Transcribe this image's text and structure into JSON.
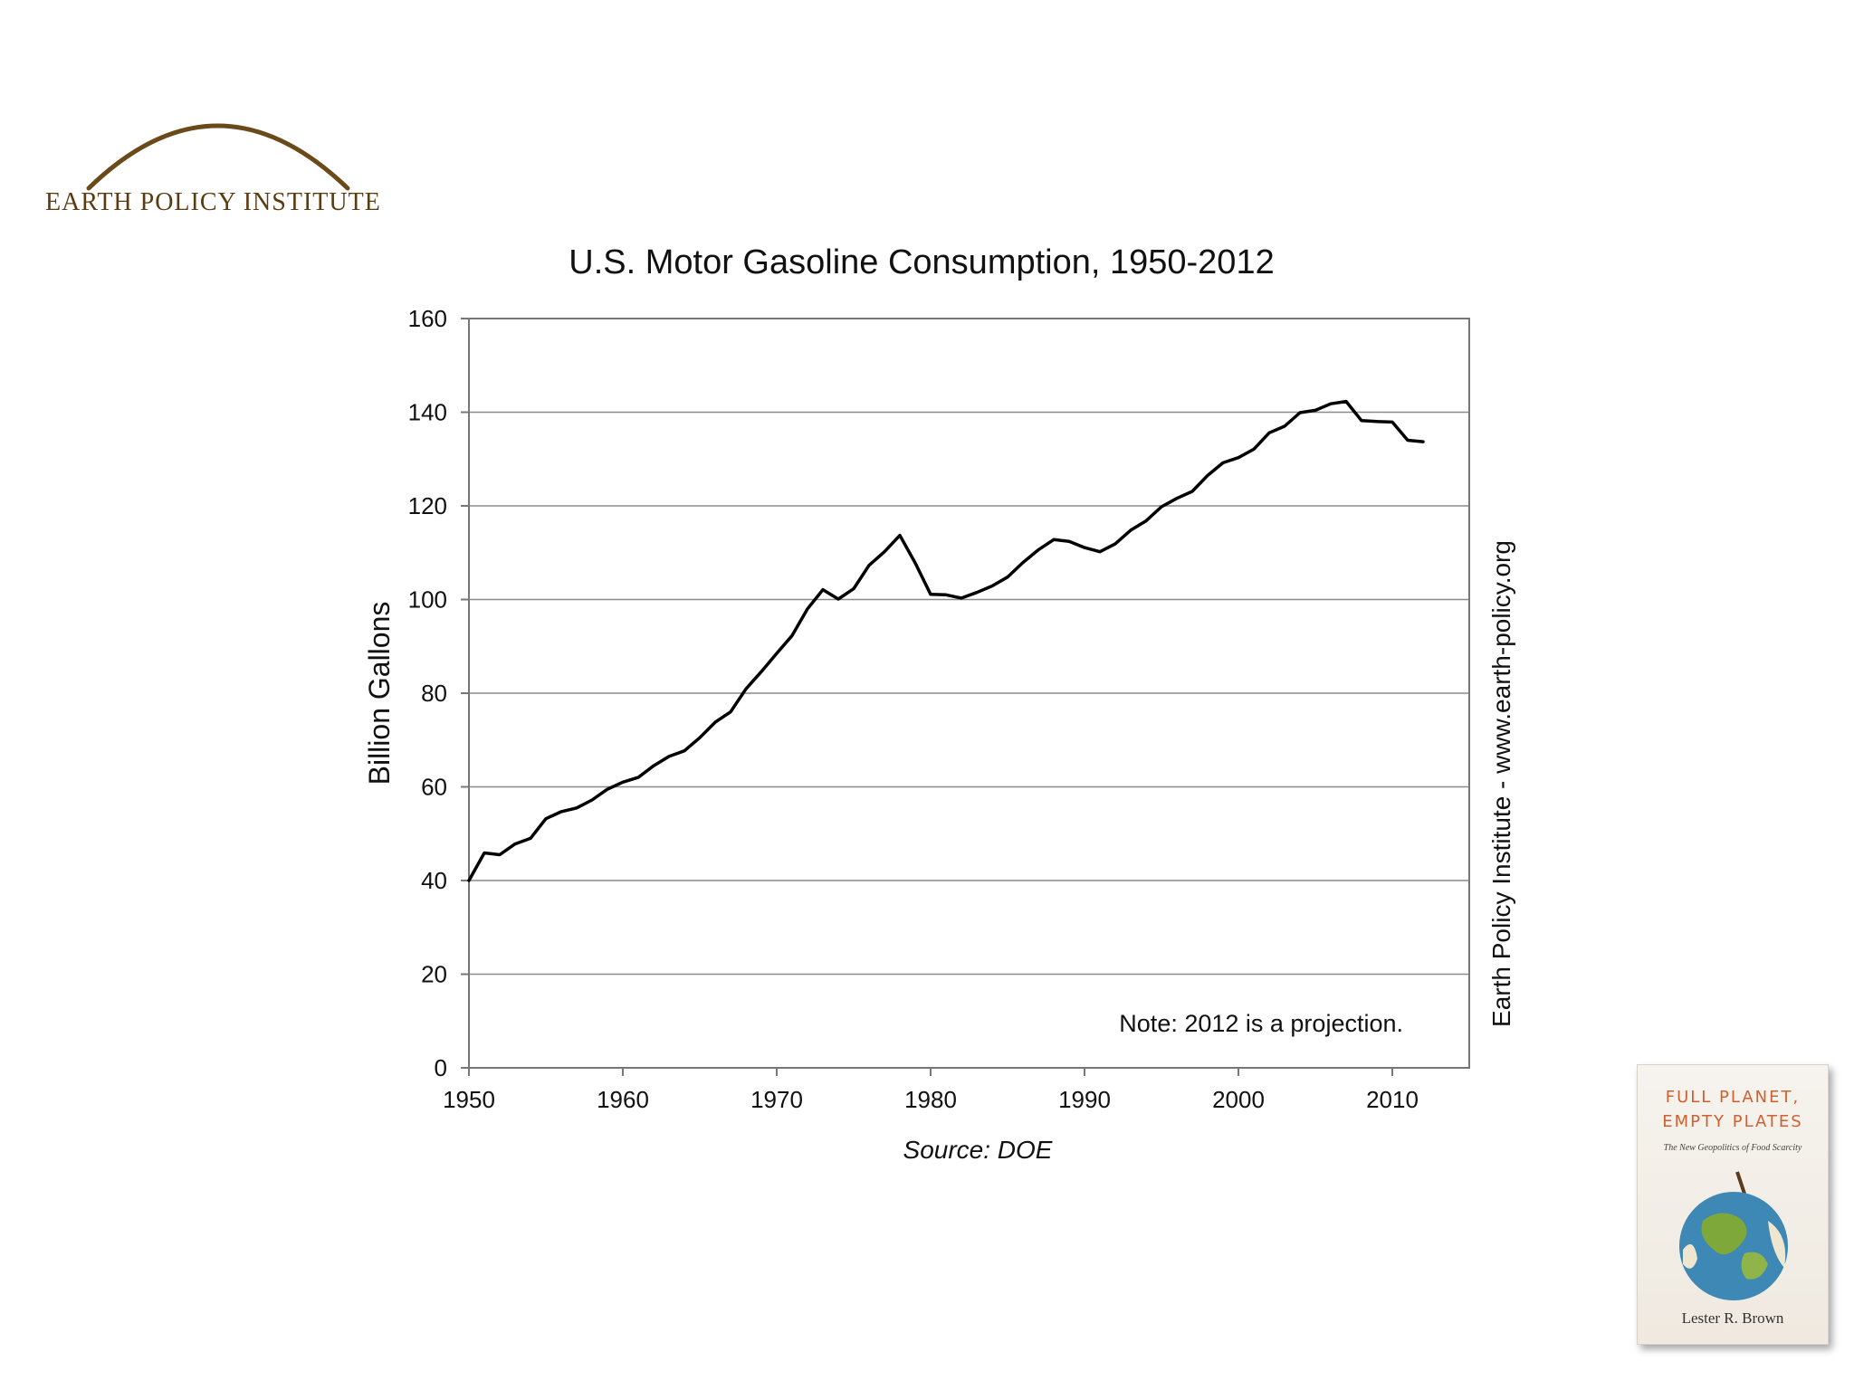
{
  "logo": {
    "text": "EARTH POLICY INSTITUTE",
    "color": "#5a3c13"
  },
  "chart_data": {
    "type": "line",
    "title": "U.S. Motor Gasoline Consumption, 1950-2012",
    "xlabel": "",
    "ylabel": "Billion Gallons",
    "xlim": [
      1950,
      2015
    ],
    "ylim": [
      0,
      160
    ],
    "xticks": [
      1950,
      1960,
      1970,
      1980,
      1990,
      2000,
      2010
    ],
    "yticks": [
      0,
      20,
      40,
      60,
      80,
      100,
      120,
      140,
      160
    ],
    "grid": true,
    "source": "Source: DOE",
    "note": "Note: 2012 is a projection.",
    "side_label": "Earth Policy Institute - www.earth-policy.org",
    "series": [
      {
        "color": "#000000",
        "x": [
          1950,
          1951,
          1952,
          1953,
          1954,
          1955,
          1956,
          1957,
          1958,
          1959,
          1960,
          1961,
          1962,
          1963,
          1964,
          1965,
          1966,
          1967,
          1968,
          1969,
          1970,
          1971,
          1972,
          1973,
          1974,
          1975,
          1976,
          1977,
          1978,
          1979,
          1980,
          1981,
          1982,
          1983,
          1984,
          1985,
          1986,
          1987,
          1988,
          1989,
          1990,
          1991,
          1992,
          1993,
          1994,
          1995,
          1996,
          1997,
          1998,
          1999,
          2000,
          2001,
          2002,
          2003,
          2004,
          2005,
          2006,
          2007,
          2008,
          2009,
          2010,
          2011,
          2012
        ],
        "y": [
          40,
          45.9,
          45.5,
          47.8,
          49,
          53.2,
          54.7,
          55.5,
          57.2,
          59.5,
          61,
          62,
          64.5,
          66.5,
          67.7,
          70.5,
          73.8,
          76,
          80.9,
          84.6,
          88.5,
          92.3,
          98,
          102.1,
          100.1,
          102.3,
          107.3,
          110.2,
          113.7,
          107.8,
          101.1,
          101,
          100.3,
          101.5,
          102.9,
          104.8,
          107.9,
          110.6,
          112.8,
          112.4,
          111.1,
          110.2,
          111.9,
          114.8,
          116.8,
          119.8,
          121.6,
          123.1,
          126.5,
          129.2,
          130.3,
          132.1,
          135.6,
          137,
          139.9,
          140.4,
          141.8,
          142.3,
          138.2,
          138,
          137.9,
          134,
          133.7
        ]
      }
    ]
  },
  "book": {
    "title_line1": "FULL PLANET,",
    "title_line2": "EMPTY PLATES",
    "subtitle": "The New Geopolitics of Food Scarcity",
    "author": "Lester R. Brown"
  }
}
